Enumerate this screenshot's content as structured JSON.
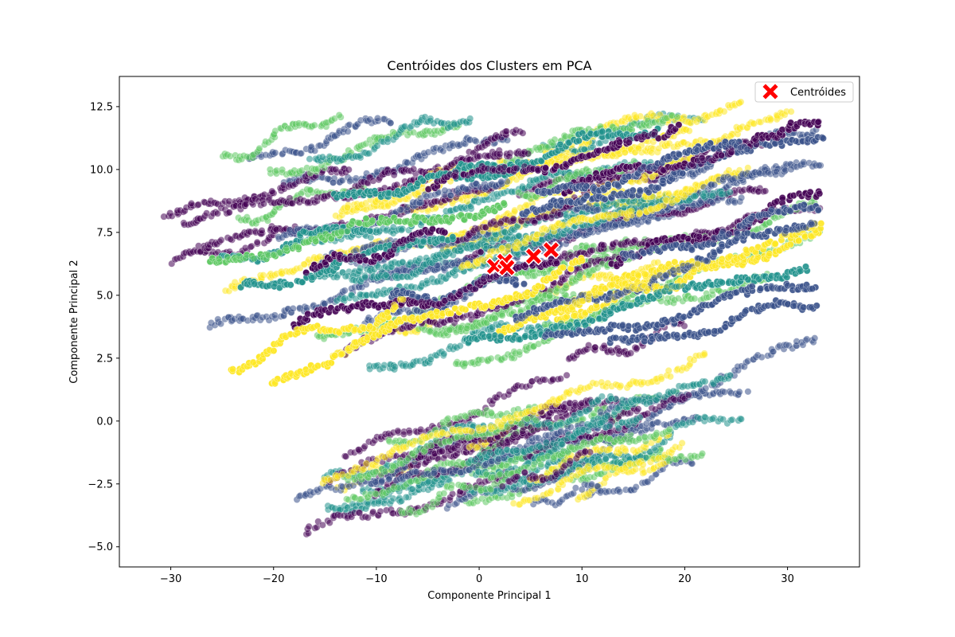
{
  "chart_data": {
    "type": "scatter",
    "title": "Centróides dos Clusters em PCA",
    "xlabel": "Componente Principal 1",
    "ylabel": "Componente Principal 2",
    "xlim": [
      -35,
      37
    ],
    "ylim": [
      -5.8,
      13.7
    ],
    "xticks": [
      -30,
      -20,
      -10,
      0,
      10,
      20,
      30
    ],
    "xtick_labels": [
      "−30",
      "−20",
      "−10",
      "0",
      "10",
      "20",
      "30"
    ],
    "yticks": [
      -5.0,
      -2.5,
      0.0,
      2.5,
      5.0,
      7.5,
      10.0,
      12.5
    ],
    "ytick_labels": [
      "−5.0",
      "−2.5",
      "0.0",
      "2.5",
      "5.0",
      "7.5",
      "10.0",
      "12.5"
    ],
    "grid": false,
    "legend": {
      "position": "top-right",
      "entries": [
        "Centróides"
      ]
    },
    "clusters": [
      {
        "color": "#440154"
      },
      {
        "color": "#3b528b"
      },
      {
        "color": "#21918c"
      },
      {
        "color": "#5ec962"
      },
      {
        "color": "#fde725"
      }
    ],
    "centroid_color": "#ff0000",
    "centroids": [
      {
        "x": 1.5,
        "y": 6.15
      },
      {
        "x": 2.5,
        "y": 6.35
      },
      {
        "x": 2.7,
        "y": 6.1
      },
      {
        "x": 5.3,
        "y": 6.55
      },
      {
        "x": 7.0,
        "y": 6.8
      }
    ]
  }
}
